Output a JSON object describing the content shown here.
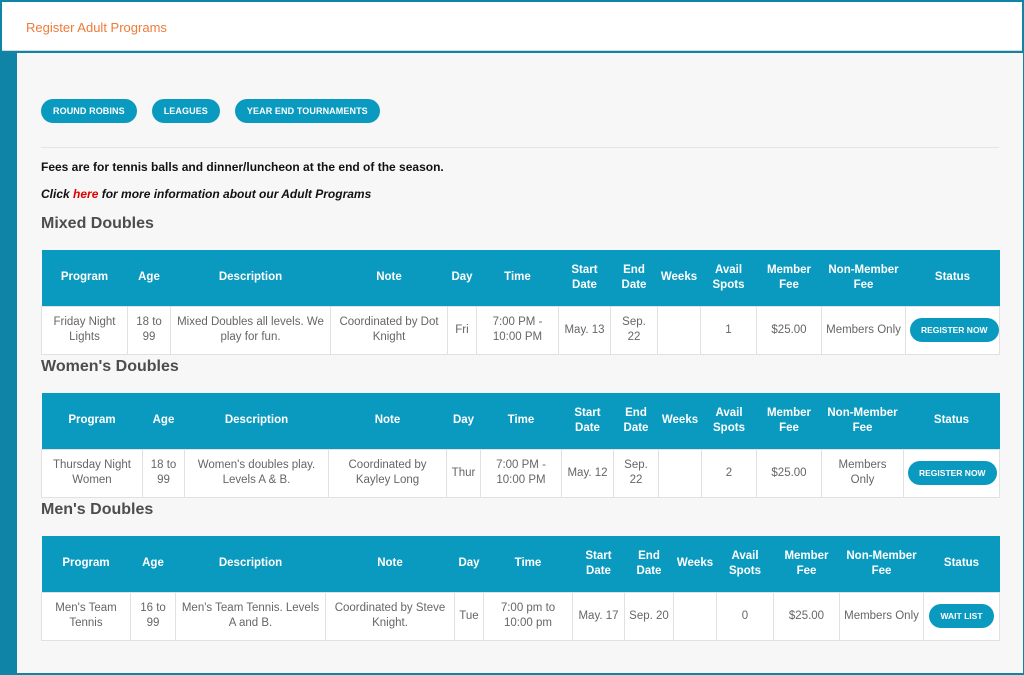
{
  "header": {
    "title": "Register Adult Programs"
  },
  "nav_pills": [
    "ROUND ROBINS",
    "LEAGUES",
    "YEAR END TOURNAMENTS"
  ],
  "fees_note": "Fees are for tennis balls and dinner/luncheon at the end of the season.",
  "info": {
    "prefix": "Click ",
    "link": "here",
    "suffix": " for more information about our Adult Programs"
  },
  "columns": [
    "Program",
    "Age",
    "Description",
    "Note",
    "Day",
    "Time",
    "Start Date",
    "End Date",
    "Weeks",
    "Avail Spots",
    "Member Fee",
    "Non-Member Fee",
    "Status"
  ],
  "sections": [
    {
      "title": "Mixed Doubles",
      "row": {
        "program": "Friday Night Lights",
        "age": "18 to 99",
        "description": "Mixed Doubles all levels. We play for fun.",
        "note": "Coordinated by Dot Knight",
        "day": "Fri",
        "time": "7:00 PM - 10:00 PM",
        "start": "May. 13",
        "end": "Sep. 22",
        "weeks": "",
        "spots": "1",
        "member_fee": "$25.00",
        "non_member_fee": "Members Only",
        "status": "REGISTER NOW"
      }
    },
    {
      "title": "Women's Doubles",
      "row": {
        "program": "Thursday Night Women",
        "age": "18 to 99",
        "description": "Women's doubles play. Levels A & B.",
        "note": "Coordinated by Kayley Long",
        "day": "Thur",
        "time": "7:00 PM - 10:00 PM",
        "start": "May. 12",
        "end": "Sep. 22",
        "weeks": "",
        "spots": "2",
        "member_fee": "$25.00",
        "non_member_fee": "Members Only",
        "status": "REGISTER NOW"
      }
    },
    {
      "title": "Men's Doubles",
      "row": {
        "program": "Men's Team Tennis",
        "age": "16 to 99",
        "description": "Men's Team Tennis. Levels A and B.",
        "note": "Coordinated by Steve Knight.",
        "day": "Tue",
        "time": "7:00 pm to 10:00 pm",
        "start": "May. 17",
        "end": "Sep. 20",
        "weeks": "",
        "spots": "0",
        "member_fee": "$25.00",
        "non_member_fee": "Members Only",
        "status": "WAIT LIST"
      }
    }
  ],
  "colors": {
    "accent": "#0a9abf",
    "title_orange": "#f07a3a",
    "members_red": "#e00000",
    "frame": "#0f84a6"
  }
}
